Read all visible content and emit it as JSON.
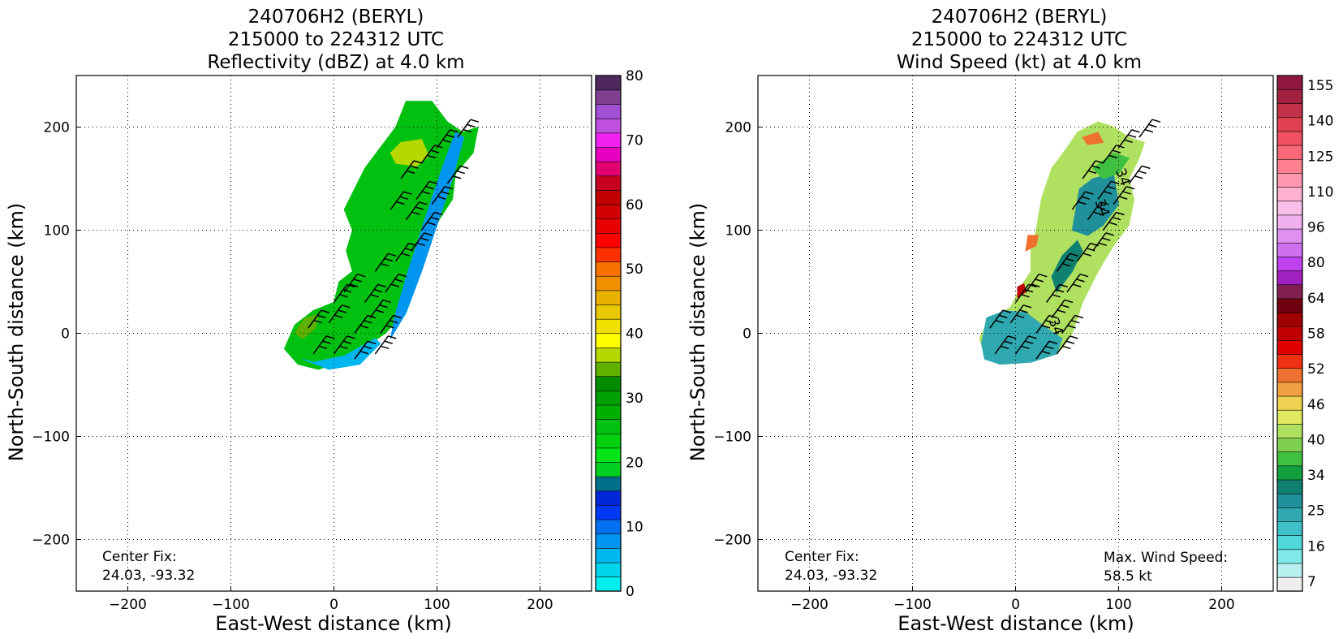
{
  "chart_data": [
    {
      "type": "heatmap",
      "title": [
        "240706H2 (BERYL)",
        "215000 to 224312 UTC",
        "Reflectivity (dBZ) at 4.0 km"
      ],
      "xlabel": "East-West distance (km)",
      "ylabel": "North-South distance (km)",
      "xlim": [
        -250,
        250
      ],
      "ylim": [
        -250,
        250
      ],
      "xticks": [
        -200,
        -100,
        0,
        100,
        200
      ],
      "yticks": [
        -200,
        -100,
        0,
        100,
        200
      ],
      "xtick_labels": [
        "−200",
        "−100",
        "0",
        "100",
        "200"
      ],
      "ytick_labels": [
        "−200",
        "−100",
        "0",
        "100",
        "200"
      ],
      "grid": true,
      "annotations": {
        "center_fix_label": "Center Fix:",
        "center_fix_value": "24.03, -93.32"
      },
      "colorbar": {
        "min": 0,
        "max": 80,
        "step": 2.5,
        "ticks": [
          0,
          10,
          20,
          30,
          40,
          50,
          60,
          70,
          80
        ],
        "colors": [
          "#00eeee",
          "#00d4ea",
          "#00b6ee",
          "#0096f0",
          "#0070f0",
          "#0038f6",
          "#0028d8",
          "#00708a",
          "#00d020",
          "#00e418",
          "#00d010",
          "#00c010",
          "#00b000",
          "#00a000",
          "#008c00",
          "#60b000",
          "#b4d800",
          "#ffff00",
          "#f0e000",
          "#e8c800",
          "#e8b000",
          "#f09000",
          "#f87000",
          "#ff3000",
          "#ff0000",
          "#e80000",
          "#d00000",
          "#c00000",
          "#c80020",
          "#e00070",
          "#e800c0",
          "#f020f0",
          "#c050e0",
          "#a050d0",
          "#804090",
          "#502860"
        ]
      },
      "regions": [
        {
          "name": "main-band",
          "value": 27.5,
          "polygon": [
            [
              -48,
              -15
            ],
            [
              -38,
              8
            ],
            [
              -20,
              22
            ],
            [
              0,
              30
            ],
            [
              5,
              50
            ],
            [
              18,
              60
            ],
            [
              12,
              80
            ],
            [
              18,
              100
            ],
            [
              10,
              120
            ],
            [
              20,
              140
            ],
            [
              30,
              160
            ],
            [
              45,
              180
            ],
            [
              60,
              200
            ],
            [
              70,
              225
            ],
            [
              95,
              225
            ],
            [
              110,
              205
            ],
            [
              125,
              195
            ],
            [
              140,
              200
            ],
            [
              135,
              175
            ],
            [
              118,
              155
            ],
            [
              115,
              130
            ],
            [
              102,
              110
            ],
            [
              88,
              80
            ],
            [
              78,
              50
            ],
            [
              68,
              20
            ],
            [
              50,
              0
            ],
            [
              35,
              -10
            ],
            [
              15,
              -25
            ],
            [
              -15,
              -35
            ],
            [
              -35,
              -30
            ]
          ]
        },
        {
          "name": "north-core",
          "value": 40,
          "polygon": [
            [
              55,
              175
            ],
            [
              65,
              185
            ],
            [
              85,
              188
            ],
            [
              92,
              172
            ],
            [
              80,
              162
            ],
            [
              60,
              165
            ]
          ]
        },
        {
          "name": "west-core",
          "value": 37.5,
          "polygon": [
            [
              -38,
              0
            ],
            [
              -28,
              15
            ],
            [
              -15,
              18
            ],
            [
              -18,
              5
            ],
            [
              -30,
              -5
            ]
          ]
        },
        {
          "name": "inner-blue",
          "value": 7.5,
          "polygon": [
            [
              60,
              20
            ],
            [
              72,
              60
            ],
            [
              88,
              110
            ],
            [
              105,
              160
            ],
            [
              118,
              195
            ],
            [
              126,
              190
            ],
            [
              115,
              150
            ],
            [
              100,
              105
            ],
            [
              85,
              60
            ],
            [
              70,
              20
            ],
            [
              55,
              -5
            ]
          ]
        },
        {
          "name": "south-edge",
          "value": 5,
          "polygon": [
            [
              -30,
              -25
            ],
            [
              -5,
              -35
            ],
            [
              25,
              -30
            ],
            [
              45,
              -10
            ],
            [
              40,
              -5
            ],
            [
              10,
              -22
            ],
            [
              -20,
              -28
            ]
          ]
        }
      ],
      "barbs": [
        [
          -20,
          -20
        ],
        [
          0,
          -20
        ],
        [
          20,
          -25
        ],
        [
          40,
          -20
        ],
        [
          45,
          0
        ],
        [
          35,
          15
        ],
        [
          30,
          30
        ],
        [
          50,
          40
        ],
        [
          40,
          60
        ],
        [
          60,
          70
        ],
        [
          75,
          80
        ],
        [
          85,
          100
        ],
        [
          70,
          110
        ],
        [
          55,
          120
        ],
        [
          80,
          130
        ],
        [
          95,
          125
        ],
        [
          110,
          145
        ],
        [
          65,
          150
        ],
        [
          85,
          165
        ],
        [
          100,
          180
        ],
        [
          120,
          190
        ],
        [
          10,
          40
        ],
        [
          0,
          30
        ],
        [
          -5,
          10
        ],
        [
          20,
          0
        ],
        [
          -25,
          5
        ]
      ]
    },
    {
      "type": "heatmap",
      "title": [
        "240706H2 (BERYL)",
        "215000 to 224312 UTC",
        "Wind Speed (kt) at 4.0 km"
      ],
      "xlabel": "East-West distance (km)",
      "ylabel": "North-South distance (km)",
      "xlim": [
        -250,
        250
      ],
      "ylim": [
        -250,
        250
      ],
      "xticks": [
        -200,
        -100,
        0,
        100,
        200
      ],
      "yticks": [
        -200,
        -100,
        0,
        100,
        200
      ],
      "xtick_labels": [
        "−200",
        "−100",
        "0",
        "100",
        "200"
      ],
      "ytick_labels": [
        "−200",
        "−100",
        "0",
        "100",
        "200"
      ],
      "grid": true,
      "annotations": {
        "center_fix_label": "Center Fix:",
        "center_fix_value": "24.03, -93.32",
        "max_wind_label": "Max. Wind Speed:",
        "max_wind_value": "58.5 kt",
        "contour_labels": [
          "34",
          "34",
          "34"
        ]
      },
      "colorbar": {
        "labels": [
          "7",
          "16",
          "25",
          "34",
          "40",
          "46",
          "52",
          "58",
          "64",
          "80",
          "96",
          "110",
          "125",
          "140",
          "155"
        ],
        "colors": [
          "#eeeeee",
          "#b8f0f0",
          "#80e8e8",
          "#50d8d8",
          "#40c0c8",
          "#30a8b0",
          "#20909a",
          "#108070",
          "#10a040",
          "#40c040",
          "#80d050",
          "#b0e060",
          "#e0e860",
          "#f0d050",
          "#f0a040",
          "#f07030",
          "#f03010",
          "#e00000",
          "#c00000",
          "#a00000",
          "#700010",
          "#802050",
          "#a020c0",
          "#c040f0",
          "#d070f0",
          "#e090f0",
          "#f0b0f0",
          "#f8c0e8",
          "#ffb0d0",
          "#ff98b0",
          "#ff8090",
          "#f86878",
          "#f05060",
          "#e04050",
          "#c03048",
          "#a02040",
          "#901840"
        ]
      },
      "regions": [
        {
          "name": "main-band",
          "value": 42,
          "polygon": [
            [
              -35,
              -5
            ],
            [
              -25,
              15
            ],
            [
              -5,
              25
            ],
            [
              5,
              45
            ],
            [
              15,
              60
            ],
            [
              15,
              80
            ],
            [
              20,
              100
            ],
            [
              25,
              130
            ],
            [
              35,
              160
            ],
            [
              50,
              180
            ],
            [
              60,
              195
            ],
            [
              80,
              205
            ],
            [
              95,
              200
            ],
            [
              110,
              190
            ],
            [
              125,
              185
            ],
            [
              120,
              170
            ],
            [
              110,
              150
            ],
            [
              115,
              130
            ],
            [
              110,
              105
            ],
            [
              95,
              85
            ],
            [
              80,
              60
            ],
            [
              65,
              30
            ],
            [
              55,
              0
            ],
            [
              45,
              -15
            ],
            [
              25,
              -25
            ],
            [
              -10,
              -30
            ],
            [
              -30,
              -20
            ]
          ]
        },
        {
          "name": "teal-core",
          "value": 28,
          "polygon": [
            [
              55,
              100
            ],
            [
              62,
              140
            ],
            [
              75,
              150
            ],
            [
              95,
              155
            ],
            [
              100,
              125
            ],
            [
              85,
              105
            ],
            [
              70,
              95
            ]
          ]
        },
        {
          "name": "teal-sw",
          "value": 25,
          "polygon": [
            [
              -33,
              -10
            ],
            [
              -28,
              15
            ],
            [
              -10,
              22
            ],
            [
              10,
              20
            ],
            [
              30,
              5
            ],
            [
              45,
              -5
            ],
            [
              40,
              -20
            ],
            [
              15,
              -28
            ],
            [
              -15,
              -30
            ],
            [
              -30,
              -25
            ]
          ]
        },
        {
          "name": "teal-mid",
          "value": 30,
          "polygon": [
            [
              40,
              40
            ],
            [
              55,
              60
            ],
            [
              65,
              80
            ],
            [
              60,
              90
            ],
            [
              45,
              75
            ],
            [
              35,
              55
            ]
          ]
        },
        {
          "name": "orange-west",
          "value": 50,
          "polygon": [
            [
              10,
              80
            ],
            [
              20,
              85
            ],
            [
              22,
              95
            ],
            [
              12,
              95
            ]
          ]
        },
        {
          "name": "red-spot",
          "value": 57,
          "polygon": [
            [
              2,
              35
            ],
            [
              10,
              40
            ],
            [
              8,
              48
            ],
            [
              2,
              45
            ]
          ]
        },
        {
          "name": "orange-north",
          "value": 50,
          "polygon": [
            [
              65,
              190
            ],
            [
              80,
              195
            ],
            [
              85,
              185
            ],
            [
              70,
              183
            ]
          ]
        },
        {
          "name": "green-north",
          "value": 38,
          "polygon": [
            [
              75,
              160
            ],
            [
              95,
              175
            ],
            [
              110,
              170
            ],
            [
              100,
              155
            ],
            [
              85,
              150
            ]
          ]
        }
      ],
      "barbs": [
        [
          -20,
          -20
        ],
        [
          0,
          -20
        ],
        [
          20,
          -25
        ],
        [
          40,
          -20
        ],
        [
          45,
          0
        ],
        [
          35,
          15
        ],
        [
          30,
          30
        ],
        [
          50,
          40
        ],
        [
          40,
          60
        ],
        [
          60,
          70
        ],
        [
          75,
          80
        ],
        [
          85,
          100
        ],
        [
          70,
          110
        ],
        [
          55,
          120
        ],
        [
          80,
          130
        ],
        [
          95,
          125
        ],
        [
          110,
          145
        ],
        [
          65,
          150
        ],
        [
          85,
          165
        ],
        [
          100,
          180
        ],
        [
          120,
          190
        ],
        [
          10,
          40
        ],
        [
          0,
          30
        ],
        [
          -5,
          10
        ],
        [
          20,
          0
        ],
        [
          -25,
          5
        ]
      ]
    }
  ]
}
